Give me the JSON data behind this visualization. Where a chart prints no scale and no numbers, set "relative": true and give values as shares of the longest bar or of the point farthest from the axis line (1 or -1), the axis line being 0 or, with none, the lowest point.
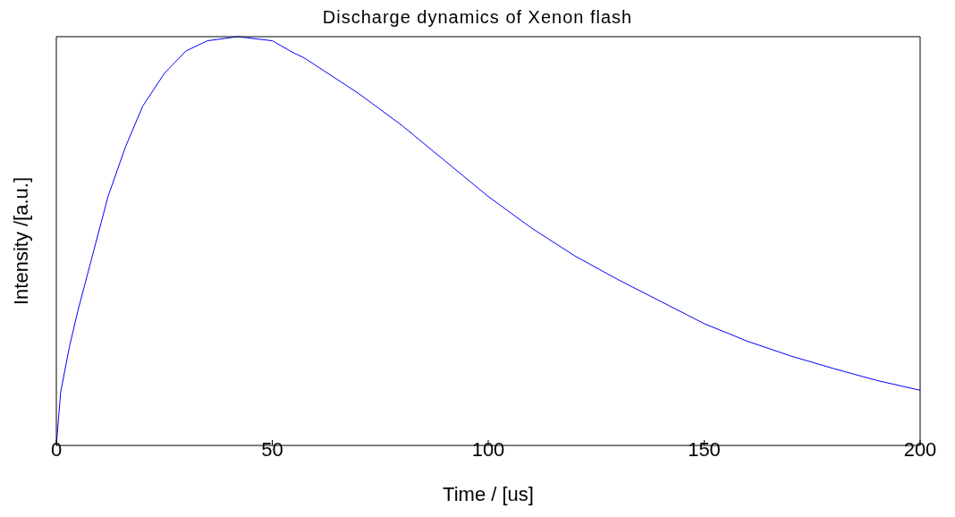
{
  "chart_data": {
    "type": "line",
    "title": "Discharge dynamics of Xenon flash",
    "xlabel": "Time / [us]",
    "ylabel": "Intensity  /[a.u.]",
    "relative": true,
    "xlim": [
      0,
      200
    ],
    "xticks": [
      0,
      50,
      100,
      150,
      200
    ],
    "marker": "none",
    "line_style": "solid",
    "grid": false,
    "series": [
      {
        "color": "#0000ff",
        "x": [
          0,
          1,
          3,
          5,
          8,
          12,
          16,
          20,
          25,
          30,
          35,
          42,
          50,
          55,
          57.4,
          70,
          80,
          90,
          100,
          110,
          120,
          130,
          140,
          150,
          160,
          170,
          180,
          190,
          200
        ],
        "values": [
          0,
          0.13,
          0.24,
          0.33,
          0.45,
          0.61,
          0.73,
          0.83,
          0.91,
          0.965,
          0.99,
          1,
          0.99,
          0.96,
          0.948,
          0.861,
          0.783,
          0.696,
          0.609,
          0.532,
          0.464,
          0.406,
          0.352,
          0.298,
          0.255,
          0.219,
          0.188,
          0.159,
          0.135
        ]
      }
    ]
  }
}
